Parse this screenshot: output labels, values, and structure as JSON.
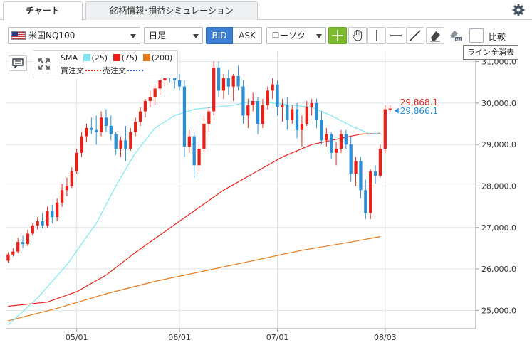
{
  "tabs": [
    {
      "label": "チャート",
      "active": true
    },
    {
      "label": "銘柄情報･損益シミュレーション",
      "active": false
    }
  ],
  "toolbar": {
    "symbol": "米国NQ100",
    "timeframe": "日足",
    "bid_label": "BID",
    "ask_label": "ASK",
    "chart_type": "ローソク",
    "compare_label": "比較",
    "tooltip": "ライン全消去"
  },
  "legend": {
    "sma_label": "SMA",
    "sma": [
      {
        "period": "(25)",
        "color": "#7fe6f0"
      },
      {
        "period": "(75)",
        "color": "#e8201a"
      },
      {
        "period": "(200)",
        "color": "#e87a1a"
      }
    ],
    "buy_order_label": "買注文",
    "sell_order_label": "売注文",
    "buy_order_color": "#e8201a",
    "sell_order_color": "#2c4fd4"
  },
  "icons": [
    "gear-icon",
    "flag-icon",
    "crosshair-icon",
    "hand-icon",
    "vertical-line-icon",
    "horizontal-line-icon",
    "trend-line-icon",
    "eraser-icon",
    "erase-all-icon",
    "menu-icon",
    "collapse-icon"
  ],
  "chart_data": {
    "type": "candlestick",
    "yticks": [
      "25,000.0",
      "26,000.0",
      "27,000.0",
      "28,000.0",
      "29,000.0",
      "30,000.0",
      "31,000.0"
    ],
    "ytick_values": [
      25000,
      26000,
      27000,
      28000,
      29000,
      30000,
      31000
    ],
    "ylim": [
      24560,
      31250
    ],
    "xticks": [
      {
        "label": "05/01",
        "index": 14
      },
      {
        "label": "06/01",
        "index": 35
      },
      {
        "label": "07/01",
        "index": 55
      },
      {
        "label": "08/03",
        "index": 77
      }
    ],
    "n_slots": 96,
    "price_labels": [
      {
        "value": 29868.1,
        "text": "29,868.1",
        "color": "#e8201a"
      },
      {
        "value": 29866.1,
        "text": "29,866.1",
        "color": "#2a8fd6"
      }
    ],
    "up_color": "#e8201a",
    "down_color": "#2a8fd6",
    "candles": [
      [
        26200,
        26400,
        26150,
        26350
      ],
      [
        26350,
        26500,
        26300,
        26420
      ],
      [
        26420,
        26750,
        26380,
        26650
      ],
      [
        26650,
        26800,
        26500,
        26600
      ],
      [
        26600,
        26950,
        26550,
        26850
      ],
      [
        26850,
        27100,
        26800,
        27050
      ],
      [
        27050,
        27250,
        26950,
        27150
      ],
      [
        27150,
        27350,
        26980,
        27050
      ],
      [
        27050,
        27500,
        27000,
        27400
      ],
      [
        27400,
        27550,
        27100,
        27250
      ],
      [
        27250,
        27700,
        27150,
        27600
      ],
      [
        27600,
        28050,
        27500,
        27900
      ],
      [
        27900,
        28200,
        27750,
        28000
      ],
      [
        28000,
        28450,
        27950,
        28350
      ],
      [
        28350,
        28900,
        28300,
        28800
      ],
      [
        28800,
        29300,
        28700,
        29200
      ],
      [
        29200,
        29500,
        29050,
        29400
      ],
      [
        29400,
        29650,
        29250,
        29350
      ],
      [
        29350,
        29700,
        29000,
        29300
      ],
      [
        29300,
        29800,
        29200,
        29650
      ],
      [
        29650,
        29850,
        29300,
        29450
      ],
      [
        29450,
        29700,
        29100,
        29250
      ],
      [
        29250,
        29300,
        28750,
        28900
      ],
      [
        28900,
        29200,
        28700,
        29100
      ],
      [
        29100,
        29450,
        28600,
        28900
      ],
      [
        28900,
        29400,
        28850,
        29300
      ],
      [
        29300,
        29650,
        29200,
        29550
      ],
      [
        29550,
        29900,
        29450,
        29800
      ],
      [
        29800,
        30100,
        29650,
        30050
      ],
      [
        30050,
        30300,
        29900,
        30150
      ],
      [
        30150,
        30450,
        29950,
        30350
      ],
      [
        30350,
        30650,
        30200,
        30550
      ],
      [
        30550,
        30850,
        30400,
        30700
      ],
      [
        30700,
        30900,
        30500,
        30600
      ],
      [
        30600,
        30800,
        30350,
        30550
      ],
      [
        30550,
        30700,
        30300,
        30400
      ],
      [
        30400,
        30550,
        28700,
        28950
      ],
      [
        28950,
        29350,
        28800,
        29200
      ],
      [
        29200,
        29300,
        28200,
        28500
      ],
      [
        28500,
        29000,
        28350,
        28900
      ],
      [
        28900,
        29700,
        28800,
        29500
      ],
      [
        29500,
        29900,
        29300,
        29800
      ],
      [
        29800,
        31000,
        29700,
        30850
      ],
      [
        30850,
        31000,
        30150,
        30300
      ],
      [
        30300,
        30700,
        30100,
        30600
      ],
      [
        30600,
        30800,
        30200,
        30400
      ],
      [
        30400,
        30700,
        30050,
        30650
      ],
      [
        30650,
        30900,
        30300,
        30400
      ],
      [
        30400,
        30550,
        29500,
        29700
      ],
      [
        29700,
        30100,
        29400,
        29950
      ],
      [
        29950,
        30250,
        29800,
        30050
      ],
      [
        30050,
        30150,
        29250,
        29500
      ],
      [
        29500,
        30100,
        29400,
        29950
      ],
      [
        29950,
        30400,
        29850,
        30300
      ],
      [
        30300,
        30600,
        30100,
        30450
      ],
      [
        30450,
        30550,
        29700,
        29900
      ],
      [
        29900,
        30100,
        29550,
        29950
      ],
      [
        29950,
        30150,
        29350,
        29600
      ],
      [
        29600,
        29950,
        29500,
        29850
      ],
      [
        29850,
        30000,
        29150,
        29350
      ],
      [
        29350,
        29700,
        28950,
        29500
      ],
      [
        29500,
        30050,
        29450,
        29900
      ],
      [
        29900,
        30100,
        29700,
        30000
      ],
      [
        30000,
        30100,
        29400,
        29600
      ],
      [
        29600,
        29800,
        29000,
        29100
      ],
      [
        29100,
        29400,
        28950,
        29250
      ],
      [
        29250,
        29300,
        28650,
        28800
      ],
      [
        28800,
        29050,
        28500,
        28900
      ],
      [
        28900,
        29350,
        28800,
        29250
      ],
      [
        29250,
        29350,
        28900,
        29000
      ],
      [
        29000,
        29200,
        28100,
        28300
      ],
      [
        28300,
        28700,
        28000,
        28600
      ],
      [
        28600,
        28700,
        27700,
        27900
      ],
      [
        27900,
        28150,
        27200,
        27350
      ],
      [
        27350,
        28400,
        27200,
        28350
      ],
      [
        28350,
        28500,
        28050,
        28250
      ],
      [
        28250,
        29000,
        28200,
        28900
      ],
      [
        28900,
        29950,
        28800,
        29850
      ],
      [
        29850,
        29950,
        29780,
        29868
      ]
    ],
    "sma25": [
      [
        0,
        24650
      ],
      [
        6,
        25300
      ],
      [
        12,
        26100
      ],
      [
        18,
        27100
      ],
      [
        22,
        28000
      ],
      [
        26,
        28800
      ],
      [
        30,
        29400
      ],
      [
        34,
        29700
      ],
      [
        38,
        29850
      ],
      [
        42,
        29900
      ],
      [
        46,
        29950
      ],
      [
        50,
        30050
      ],
      [
        54,
        30000
      ],
      [
        58,
        29950
      ],
      [
        62,
        29900
      ],
      [
        66,
        29700
      ],
      [
        70,
        29450
      ],
      [
        74,
        29250
      ],
      [
        76,
        29280
      ]
    ],
    "sma75": [
      [
        0,
        25100
      ],
      [
        8,
        25200
      ],
      [
        14,
        25450
      ],
      [
        20,
        25850
      ],
      [
        26,
        26400
      ],
      [
        32,
        26900
      ],
      [
        38,
        27400
      ],
      [
        44,
        27900
      ],
      [
        50,
        28300
      ],
      [
        56,
        28700
      ],
      [
        62,
        29000
      ],
      [
        68,
        29150
      ],
      [
        72,
        29250
      ],
      [
        76,
        29270
      ]
    ],
    "sma200": [
      [
        0,
        24750
      ],
      [
        10,
        25050
      ],
      [
        20,
        25400
      ],
      [
        30,
        25700
      ],
      [
        40,
        25950
      ],
      [
        50,
        26200
      ],
      [
        60,
        26450
      ],
      [
        70,
        26650
      ],
      [
        76,
        26780
      ]
    ]
  }
}
